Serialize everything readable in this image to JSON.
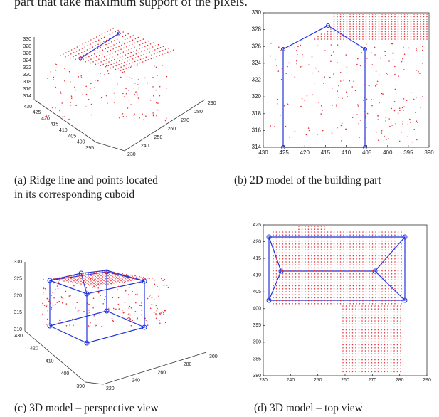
{
  "header": {
    "text": "part that take maximum support of the pixels."
  },
  "figures": [
    {
      "caption": [
        "(a) Ridge line and points located",
        "in its corresponding cuboid"
      ],
      "zticks": [
        314,
        316,
        318,
        320,
        322,
        324,
        326,
        328,
        330
      ],
      "xticks": [
        430,
        425,
        420,
        415,
        410,
        405,
        400,
        395
      ],
      "yticks": [
        230,
        240,
        250,
        260,
        270,
        280,
        290
      ]
    },
    {
      "caption": [
        "(b) 2D model of the building part"
      ],
      "xticks": [
        430,
        425,
        420,
        415,
        410,
        405,
        400,
        395,
        390
      ],
      "yticks": [
        314,
        316,
        318,
        320,
        322,
        324,
        326,
        328,
        330
      ]
    },
    {
      "caption": [
        "(c) 3D model – perspective view"
      ],
      "zticks": [
        310,
        315,
        320,
        325,
        330
      ],
      "xticks": [
        430,
        420,
        410,
        400,
        390
      ],
      "yticks": [
        220,
        240,
        260,
        280,
        300
      ]
    },
    {
      "caption": [
        "(d) 3D model – top view"
      ],
      "xticks": [
        230,
        240,
        250,
        260,
        270,
        280,
        290
      ],
      "yticks": [
        380,
        385,
        390,
        395,
        400,
        405,
        410,
        415,
        420,
        425
      ]
    }
  ]
}
